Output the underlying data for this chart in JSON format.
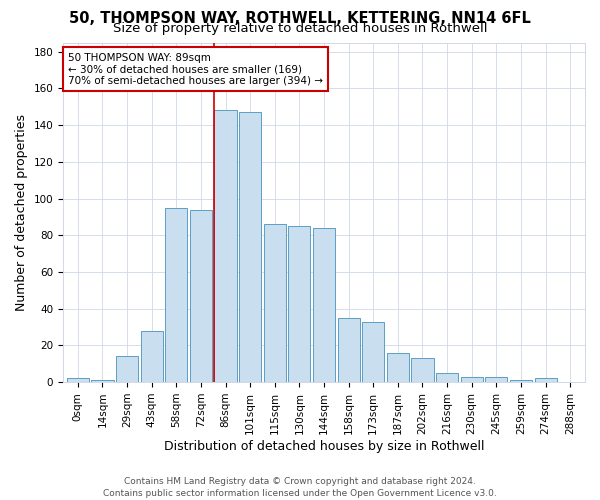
{
  "title_line1": "50, THOMPSON WAY, ROTHWELL, KETTERING, NN14 6FL",
  "title_line2": "Size of property relative to detached houses in Rothwell",
  "xlabel": "Distribution of detached houses by size in Rothwell",
  "ylabel": "Number of detached properties",
  "bar_labels": [
    "0sqm",
    "14sqm",
    "29sqm",
    "43sqm",
    "58sqm",
    "72sqm",
    "86sqm",
    "101sqm",
    "115sqm",
    "130sqm",
    "144sqm",
    "158sqm",
    "173sqm",
    "187sqm",
    "202sqm",
    "216sqm",
    "230sqm",
    "245sqm",
    "259sqm",
    "274sqm",
    "288sqm"
  ],
  "bar_values": [
    2,
    1,
    14,
    28,
    95,
    94,
    148,
    147,
    86,
    85,
    84,
    35,
    33,
    16,
    13,
    5,
    3,
    3,
    1,
    2,
    0
  ],
  "bar_color": "#c9dff0",
  "bar_edge_color": "#5b9fc4",
  "background_color": "#ffffff",
  "grid_color": "#d0d8e8",
  "vline_color": "#cc0000",
  "annotation_line1": "50 THOMPSON WAY: 89sqm",
  "annotation_line2": "← 30% of detached houses are smaller (169)",
  "annotation_line3": "70% of semi-detached houses are larger (394) →",
  "annotation_box_color": "#ffffff",
  "annotation_box_edge_color": "#cc0000",
  "ylim": [
    0,
    185
  ],
  "yticks": [
    0,
    20,
    40,
    60,
    80,
    100,
    120,
    140,
    160,
    180
  ],
  "footnote": "Contains HM Land Registry data © Crown copyright and database right 2024.\nContains public sector information licensed under the Open Government Licence v3.0.",
  "title_fontsize": 10.5,
  "subtitle_fontsize": 9.5,
  "axis_label_fontsize": 9,
  "tick_fontsize": 7.5,
  "annotation_fontsize": 7.5,
  "footnote_fontsize": 6.5
}
